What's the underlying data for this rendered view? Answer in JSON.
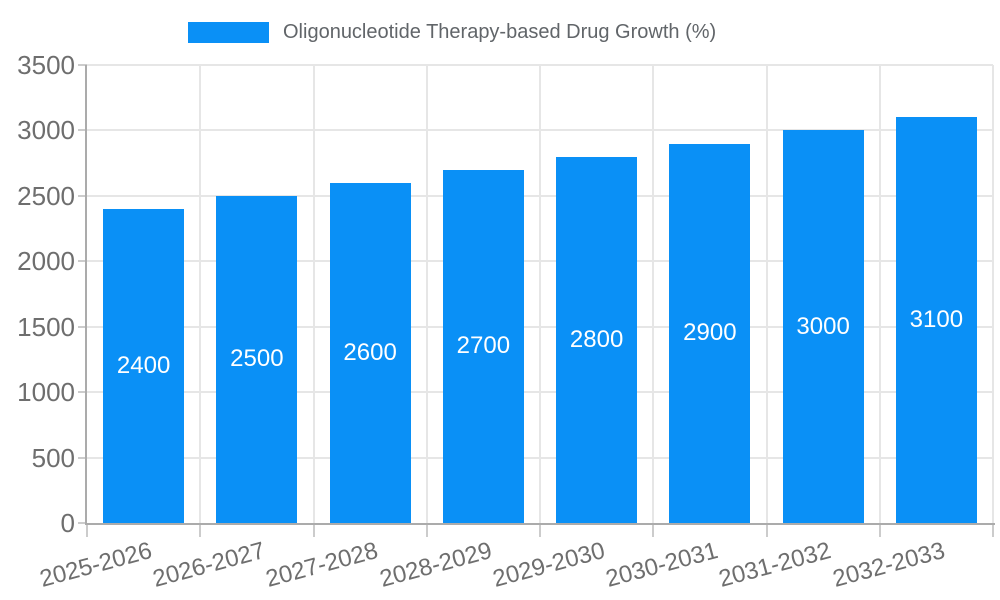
{
  "legend": {
    "label": "Oligonucleotide Therapy-based Drug Growth (%)"
  },
  "colors": {
    "bar": "#0a90f6",
    "grid": "#e6e6e6",
    "axis": "#ababab",
    "tick_mark": "#cccccc",
    "tick_text": "#6e6e6e",
    "legend_text": "#616569",
    "value_label_text": "#ffffff",
    "background": "#ffffff"
  },
  "chart_data": {
    "type": "bar",
    "title": "Oligonucleotide Therapy-based Drug Growth (%)",
    "legend_entries": [
      "Oligonucleotide Therapy-based Drug Growth (%)"
    ],
    "legend_position": "top",
    "categories": [
      "2025-2026",
      "2026-2027",
      "2027-2028",
      "2028-2029",
      "2029-2030",
      "2030-2031",
      "2031-2032",
      "2032-2033"
    ],
    "series": [
      {
        "name": "Oligonucleotide Therapy-based Drug Growth (%)",
        "values": [
          2400,
          2500,
          2600,
          2700,
          2800,
          2900,
          3000,
          3100
        ]
      }
    ],
    "xlabel": "",
    "ylabel": "",
    "ylim": [
      0,
      3500
    ],
    "yticks": [
      0,
      500,
      1000,
      1500,
      2000,
      2500,
      3000,
      3500
    ],
    "grid": "on",
    "x_tick_rotation_deg": -15,
    "bar_value_labels_shown": true
  }
}
